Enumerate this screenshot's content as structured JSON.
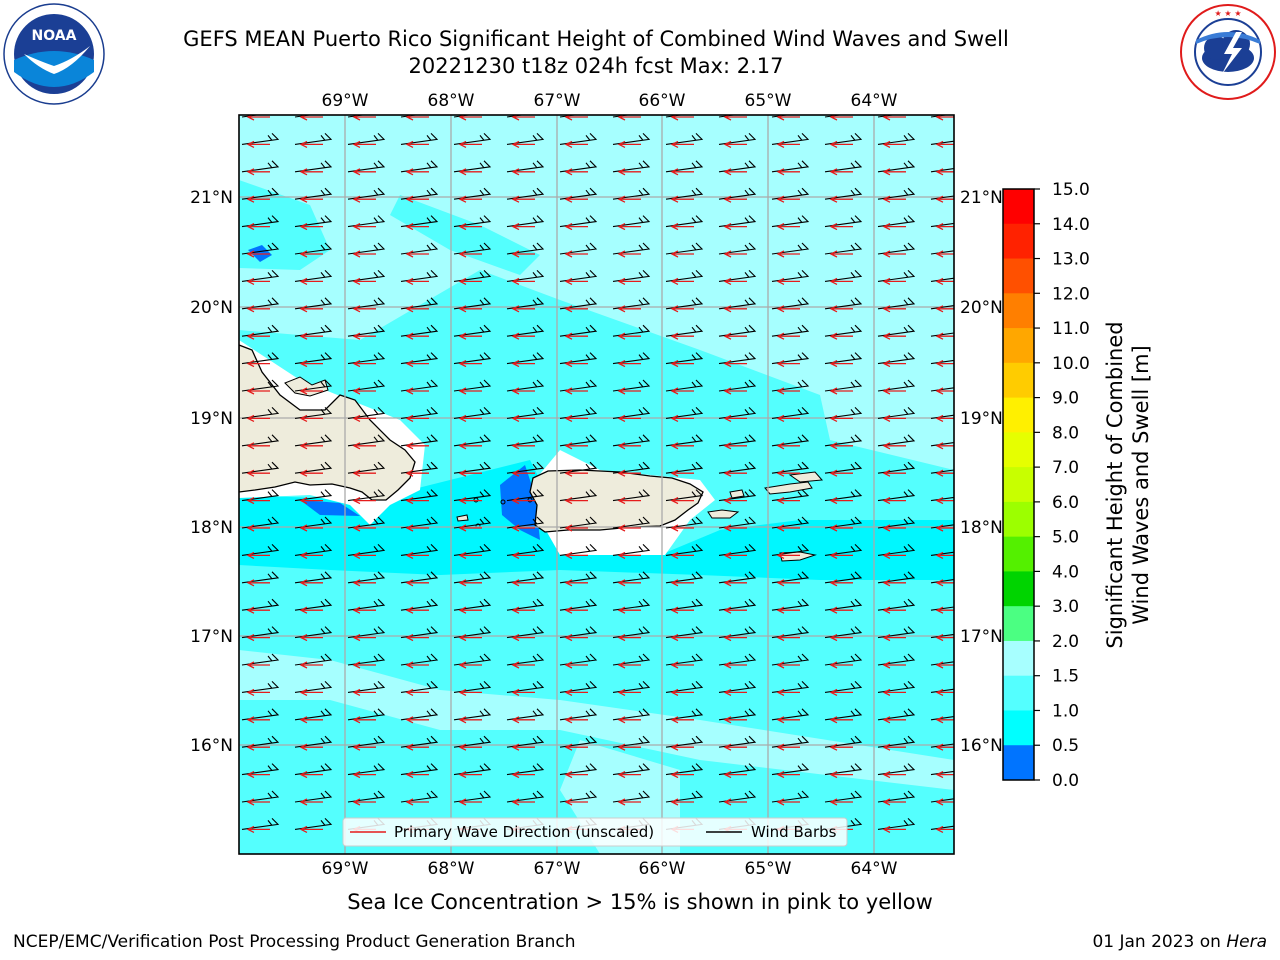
{
  "header": {
    "title_line1": "GEFS MEAN Puerto Rico Significant Height of Combined Wind Waves and Swell",
    "title_line2": "20221230 t18z 024h fcst   Max: 2.17"
  },
  "logos": {
    "left_icon": "noaa-logo-icon",
    "left_text": "NOAA",
    "left_ring_text": "NATIONAL OCEANIC AND ATMOSPHERIC ADMINISTRATION · U.S. DEPARTMENT OF COMMERCE",
    "right_icon": "nws-logo-icon",
    "right_ring_text": "NATIONAL WEATHER SERVICE"
  },
  "map": {
    "lon_labels": [
      "69°W",
      "68°W",
      "67°W",
      "66°W",
      "65°W",
      "64°W"
    ],
    "lat_labels": [
      "21°N",
      "20°N",
      "19°N",
      "18°N",
      "17°N",
      "16°N"
    ],
    "legend": {
      "wave_direction": "Primary Wave Direction (unscaled)",
      "wind_barbs": "Wind Barbs"
    },
    "colors": {
      "ocean_light": "#a6ffff",
      "ocean_mid": "#54fffe",
      "ocean_strong": "#00f7ff",
      "deep_blue": "#0074ff",
      "land": "#eeecdc",
      "arrow": "#e51c1c"
    }
  },
  "colorbar": {
    "label_line1": "Significant Height of Combined",
    "label_line2": "Wind Waves and Swell [m]",
    "ticks": [
      "15.0",
      "14.0",
      "13.0",
      "12.0",
      "11.0",
      "10.0",
      "9.0",
      "8.0",
      "7.0",
      "6.0",
      "5.0",
      "4.0",
      "3.0",
      "2.0",
      "1.5",
      "1.0",
      "0.5",
      "0.0"
    ],
    "colors": [
      "#ff0000",
      "#ff2200",
      "#ff5000",
      "#ff7f00",
      "#ffa700",
      "#ffcc00",
      "#fff000",
      "#e6ff00",
      "#c8ff00",
      "#9cff00",
      "#54f000",
      "#00d400",
      "#4bff82",
      "#a7ffff",
      "#54ffff",
      "#00ffff",
      "#0074ff",
      "#0000ff"
    ]
  },
  "notes": {
    "ice": "Sea Ice Concentration > 15% is shown in pink to yellow"
  },
  "footer": {
    "left": "NCEP/EMC/Verification Post Processing Product Generation Branch",
    "right_prefix": "01 Jan 2023 on ",
    "right_host": "Hera"
  }
}
